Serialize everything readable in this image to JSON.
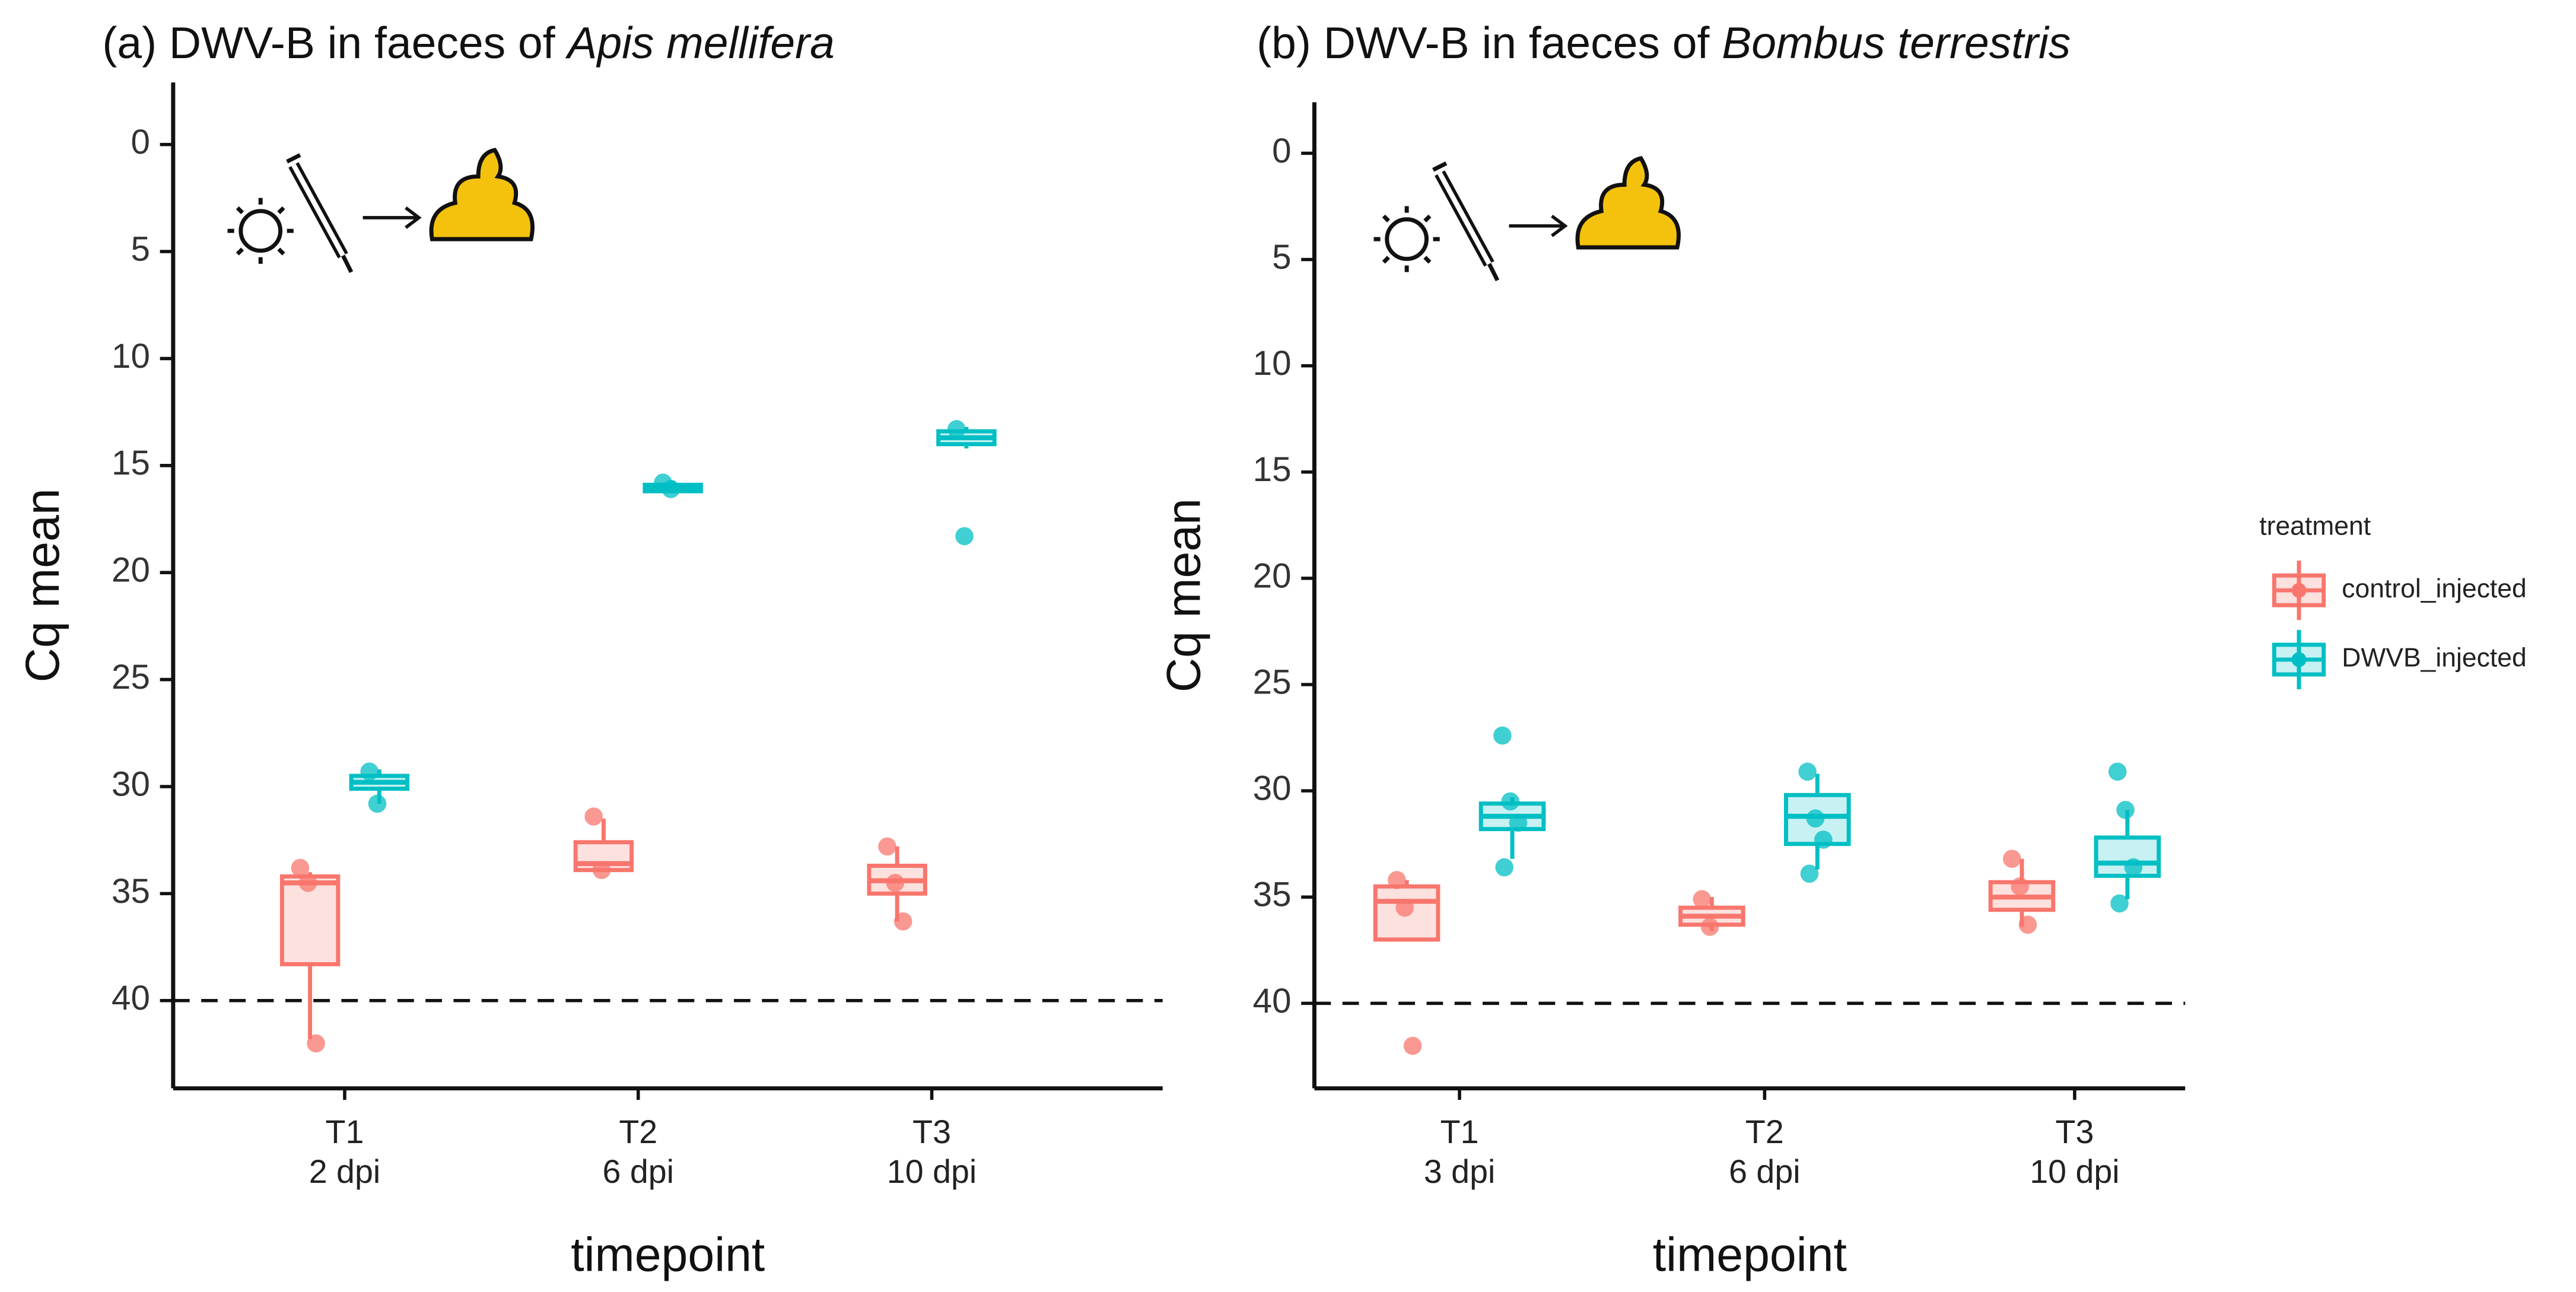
{
  "chart_data": [
    {
      "type": "box",
      "title": "(a)  DWV-B in faeces of",
      "title_italic": "Apis mellifera",
      "ylabel": "Cq mean",
      "xlabel": "timepoint",
      "inverted": true,
      "categories": [
        "T1",
        "T2",
        "T3"
      ],
      "category_sublabels": [
        "2 dpi",
        "6 dpi",
        "10 dpi"
      ],
      "ylim": [
        -2.9,
        44.1
      ],
      "yticks": [
        0,
        5,
        10,
        15,
        20,
        25,
        30,
        35,
        40
      ],
      "reference_line": 40,
      "series": [
        {
          "color": "#F8766D",
          "boxes": [
            {
              "whisker_low": 34.0,
              "q1": 34.2,
              "median": 34.5,
              "q3": 38.3,
              "whisker_high": 41.8,
              "points": [
                33.8,
                34.5,
                42.0
              ]
            },
            {
              "whisker_low": 31.5,
              "q1": 32.6,
              "median": 33.6,
              "q3": 33.9,
              "whisker_high": 34.0,
              "points": [
                31.4,
                33.9
              ]
            },
            {
              "whisker_low": 32.8,
              "q1": 33.7,
              "median": 34.4,
              "q3": 35.0,
              "whisker_high": 36.3,
              "points": [
                32.8,
                34.5,
                36.3
              ]
            }
          ]
        },
        {
          "color": "#00BFC4",
          "boxes": [
            {
              "whisker_low": 29.2,
              "q1": 29.5,
              "median": 29.8,
              "q3": 30.1,
              "whisker_high": 30.8,
              "points": [
                29.3,
                30.8
              ]
            },
            {
              "whisker_low": 15.7,
              "q1": 15.9,
              "median": 16.0,
              "q3": 16.2,
              "whisker_high": 16.2,
              "points": [
                15.8,
                16.1
              ]
            },
            {
              "whisker_low": 13.2,
              "q1": 13.4,
              "median": 13.7,
              "q3": 14.0,
              "whisker_high": 14.2,
              "points": [
                13.3,
                18.3
              ]
            }
          ]
        }
      ]
    },
    {
      "type": "box",
      "title": "(b)  DWV-B in faeces of",
      "title_italic": "Bombus terrestris",
      "ylabel": "Cq mean",
      "xlabel": "timepoint",
      "inverted": true,
      "categories": [
        "T1",
        "T2",
        "T3"
      ],
      "category_sublabels": [
        "3 dpi",
        "6 dpi",
        "10 dpi"
      ],
      "ylim": [
        -2.4,
        44.0
      ],
      "yticks": [
        0,
        5,
        10,
        15,
        20,
        25,
        30,
        35,
        40
      ],
      "reference_line": 40,
      "legend_title": "treatment",
      "series": [
        {
          "name": "control_injected",
          "color": "#F8766D",
          "boxes": [
            {
              "whisker_low": 34.2,
              "q1": 34.5,
              "median": 35.2,
              "q3": 37.0,
              "whisker_high": 37.0,
              "points": [
                34.2,
                35.5,
                42.0
              ]
            },
            {
              "whisker_low": 35.0,
              "q1": 35.5,
              "median": 35.9,
              "q3": 36.3,
              "whisker_high": 36.6,
              "points": [
                35.1,
                36.4
              ]
            },
            {
              "whisker_low": 33.2,
              "q1": 34.3,
              "median": 35.0,
              "q3": 35.6,
              "whisker_high": 36.4,
              "points": [
                33.2,
                34.5,
                36.3
              ]
            }
          ]
        },
        {
          "name": "DWVB_injected",
          "color": "#00BFC4",
          "boxes": [
            {
              "whisker_low": 30.3,
              "q1": 30.6,
              "median": 31.2,
              "q3": 31.8,
              "whisker_high": 33.2,
              "points": [
                27.4,
                30.5,
                31.5,
                33.6
              ]
            },
            {
              "whisker_low": 29.2,
              "q1": 30.2,
              "median": 31.2,
              "q3": 32.5,
              "whisker_high": 33.7,
              "points": [
                29.1,
                31.3,
                32.3,
                33.9
              ]
            },
            {
              "whisker_low": 30.9,
              "q1": 32.2,
              "median": 33.4,
              "q3": 34.0,
              "whisker_high": 35.1,
              "points": [
                29.1,
                30.9,
                33.6,
                35.3
              ]
            }
          ]
        }
      ]
    }
  ]
}
